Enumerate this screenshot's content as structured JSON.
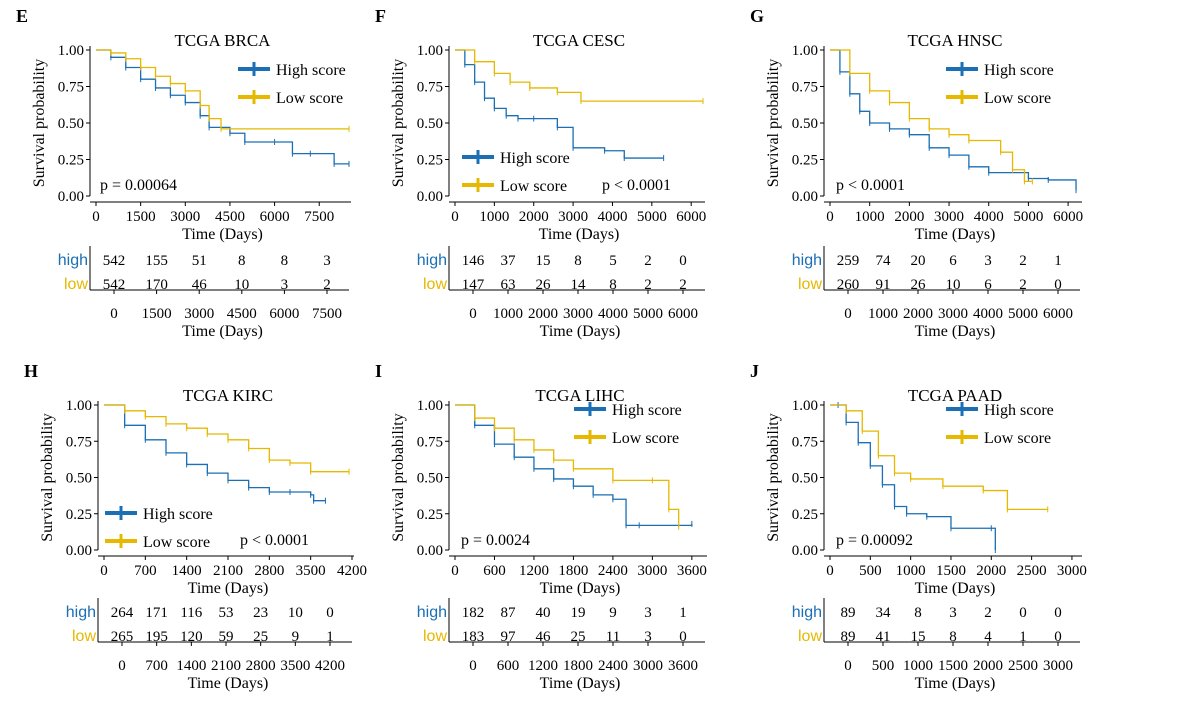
{
  "colors": {
    "high": "#1a6fb5",
    "low": "#e6b800",
    "axis": "#000000"
  },
  "legend_labels": {
    "high": "High score",
    "low": "Low score"
  },
  "y_axis_label": "Survival probability",
  "x_axis_label": "Time (Days)",
  "y_ticks": [
    "0.00",
    "0.25",
    "0.50",
    "0.75",
    "1.00"
  ],
  "panels": [
    {
      "letter": "E",
      "title": "TCGA BRCA",
      "pvalue": "p = 0.00064",
      "x_ticks": [
        0,
        1500,
        3000,
        4500,
        6000,
        7500
      ],
      "risk_times": [
        0,
        1500,
        3000,
        4500,
        6000,
        7500
      ],
      "risk_table": {
        "high": [
          "542",
          "155",
          "51",
          "8",
          "8",
          "3"
        ],
        "low": [
          "542",
          "170",
          "46",
          "10",
          "3",
          "2"
        ]
      },
      "risk_labels": {
        "high": "high",
        "low": "low"
      }
    },
    {
      "letter": "F",
      "title": "TCGA CESC",
      "pvalue": "p < 0.0001",
      "x_ticks": [
        0,
        1000,
        2000,
        3000,
        4000,
        5000,
        6000
      ],
      "risk_times": [
        0,
        1000,
        2000,
        3000,
        4000,
        5000,
        6000
      ],
      "risk_table": {
        "high": [
          "146",
          "37",
          "15",
          "8",
          "5",
          "2",
          "0"
        ],
        "low": [
          "147",
          "63",
          "26",
          "14",
          "8",
          "2",
          "2"
        ]
      },
      "risk_labels": {
        "high": "high",
        "low": "low"
      }
    },
    {
      "letter": "G",
      "title": "TCGA HNSC",
      "pvalue": "p < 0.0001",
      "x_ticks": [
        0,
        1000,
        2000,
        3000,
        4000,
        5000,
        6000
      ],
      "risk_times": [
        0,
        1000,
        2000,
        3000,
        4000,
        5000,
        6000
      ],
      "risk_table": {
        "high": [
          "259",
          "74",
          "20",
          "6",
          "3",
          "2",
          "1"
        ],
        "low": [
          "260",
          "91",
          "26",
          "10",
          "6",
          "2",
          "0"
        ]
      },
      "risk_labels": {
        "high": "high",
        "low": "low"
      }
    },
    {
      "letter": "H",
      "title": "TCGA KIRC",
      "pvalue": "p < 0.0001",
      "x_ticks": [
        0,
        700,
        1400,
        2100,
        2800,
        3500,
        4200
      ],
      "risk_times": [
        0,
        700,
        1400,
        2100,
        2800,
        3500,
        4200
      ],
      "risk_table": {
        "high": [
          "264",
          "171",
          "116",
          "53",
          "23",
          "10",
          "0"
        ],
        "low": [
          "265",
          "195",
          "120",
          "59",
          "25",
          "9",
          "1"
        ]
      },
      "risk_labels": {
        "high": "high",
        "low": "low"
      }
    },
    {
      "letter": "I",
      "title": "TCGA LIHC",
      "pvalue": "p = 0.0024",
      "x_ticks": [
        0,
        600,
        1200,
        1800,
        2400,
        3000,
        3600
      ],
      "risk_times": [
        0,
        600,
        1200,
        1800,
        2400,
        3000,
        3600
      ],
      "risk_table": {
        "high": [
          "182",
          "87",
          "40",
          "19",
          "9",
          "3",
          "1"
        ],
        "low": [
          "183",
          "97",
          "46",
          "25",
          "11",
          "3",
          "0"
        ]
      },
      "risk_labels": {
        "high": "high",
        "low": "low"
      }
    },
    {
      "letter": "J",
      "title": "TCGA PAAD",
      "pvalue": "p = 0.00092",
      "x_ticks": [
        0,
        500,
        1000,
        1500,
        2000,
        2500,
        3000
      ],
      "risk_times": [
        0,
        500,
        1000,
        1500,
        2000,
        2500,
        3000
      ],
      "risk_table": {
        "high": [
          "89",
          "34",
          "8",
          "3",
          "2",
          "0",
          "0"
        ],
        "low": [
          "89",
          "41",
          "15",
          "8",
          "4",
          "1",
          "0"
        ]
      },
      "risk_labels": {
        "high": "high",
        "low": "low"
      }
    }
  ],
  "chart_data": [
    {
      "type": "line",
      "title": "TCGA BRCA",
      "xlabel": "Time (Days)",
      "ylabel": "Survival probability",
      "xlim": [
        0,
        8500
      ],
      "ylim": [
        0,
        1
      ],
      "legend": "top-right",
      "series": [
        {
          "name": "High score",
          "x": [
            0,
            500,
            1000,
            1500,
            2000,
            2500,
            3000,
            3500,
            3800,
            4500,
            5000,
            6000,
            6600,
            7200,
            8000,
            8500
          ],
          "y": [
            1.0,
            0.95,
            0.88,
            0.8,
            0.74,
            0.69,
            0.64,
            0.55,
            0.47,
            0.43,
            0.37,
            0.37,
            0.29,
            0.29,
            0.22,
            0.22
          ]
        },
        {
          "name": "Low score",
          "x": [
            0,
            500,
            1000,
            1500,
            2000,
            2500,
            3000,
            3500,
            3800,
            4200,
            8500
          ],
          "y": [
            1.0,
            0.98,
            0.94,
            0.88,
            0.82,
            0.77,
            0.72,
            0.62,
            0.53,
            0.46,
            0.46
          ]
        }
      ]
    },
    {
      "type": "line",
      "title": "TCGA CESC",
      "xlabel": "Time (Days)",
      "ylabel": "Survival probability",
      "xlim": [
        0,
        6300
      ],
      "ylim": [
        0,
        1
      ],
      "legend": "bottom-left",
      "series": [
        {
          "name": "High score",
          "x": [
            0,
            250,
            500,
            750,
            1000,
            1300,
            1600,
            2000,
            2600,
            3000,
            3800,
            4300,
            5300
          ],
          "y": [
            1.0,
            0.9,
            0.78,
            0.67,
            0.6,
            0.55,
            0.53,
            0.53,
            0.47,
            0.33,
            0.31,
            0.26,
            0.26
          ]
        },
        {
          "name": "Low score",
          "x": [
            0,
            500,
            1000,
            1400,
            1900,
            2600,
            3200,
            6300
          ],
          "y": [
            1.0,
            0.92,
            0.84,
            0.78,
            0.74,
            0.71,
            0.65,
            0.65
          ]
        }
      ]
    },
    {
      "type": "line",
      "title": "TCGA HNSC",
      "xlabel": "Time (Days)",
      "ylabel": "Survival probability",
      "xlim": [
        0,
        6300
      ],
      "ylim": [
        0,
        1
      ],
      "legend": "top-right",
      "series": [
        {
          "name": "High score",
          "x": [
            0,
            250,
            500,
            750,
            1000,
            1500,
            2000,
            2500,
            3000,
            3500,
            4000,
            5000,
            5500,
            6200
          ],
          "y": [
            1.0,
            0.85,
            0.7,
            0.58,
            0.5,
            0.46,
            0.42,
            0.33,
            0.28,
            0.2,
            0.16,
            0.12,
            0.11,
            0.04
          ]
        },
        {
          "name": "Low score",
          "x": [
            0,
            500,
            1000,
            1500,
            2000,
            2500,
            3000,
            3500,
            4300,
            4600,
            4900,
            5100
          ],
          "y": [
            1.0,
            0.84,
            0.72,
            0.64,
            0.53,
            0.46,
            0.42,
            0.38,
            0.3,
            0.18,
            0.1,
            0.1
          ]
        }
      ]
    },
    {
      "type": "line",
      "title": "TCGA KIRC",
      "xlabel": "Time (Days)",
      "ylabel": "Survival probability",
      "xlim": [
        0,
        4200
      ],
      "ylim": [
        0,
        1
      ],
      "legend": "bottom-left",
      "series": [
        {
          "name": "High score",
          "x": [
            0,
            350,
            700,
            1050,
            1400,
            1750,
            2100,
            2450,
            2800,
            3150,
            3500,
            3550,
            3750
          ],
          "y": [
            1.0,
            0.86,
            0.76,
            0.67,
            0.59,
            0.53,
            0.48,
            0.43,
            0.4,
            0.4,
            0.38,
            0.34,
            0.34
          ]
        },
        {
          "name": "Low score",
          "x": [
            0,
            350,
            700,
            1050,
            1400,
            1750,
            2100,
            2450,
            2800,
            3150,
            3500,
            4150
          ],
          "y": [
            1.0,
            0.96,
            0.92,
            0.87,
            0.84,
            0.8,
            0.76,
            0.7,
            0.62,
            0.6,
            0.54,
            0.54
          ]
        }
      ]
    },
    {
      "type": "line",
      "title": "TCGA LIHC",
      "xlabel": "Time (Days)",
      "ylabel": "Survival probability",
      "xlim": [
        0,
        3800
      ],
      "ylim": [
        0,
        1
      ],
      "legend": "top-right",
      "series": [
        {
          "name": "High score",
          "x": [
            0,
            300,
            600,
            900,
            1200,
            1500,
            1800,
            2100,
            2400,
            2600,
            2800,
            3600
          ],
          "y": [
            1.0,
            0.86,
            0.73,
            0.64,
            0.56,
            0.49,
            0.44,
            0.38,
            0.35,
            0.17,
            0.17,
            0.18
          ]
        },
        {
          "name": "Low score",
          "x": [
            0,
            300,
            600,
            900,
            1200,
            1500,
            1800,
            2400,
            3000,
            3250,
            3400
          ],
          "y": [
            1.0,
            0.91,
            0.84,
            0.76,
            0.69,
            0.62,
            0.56,
            0.48,
            0.48,
            0.28,
            0.16
          ]
        }
      ]
    },
    {
      "type": "line",
      "title": "TCGA PAAD",
      "xlabel": "Time (Days)",
      "ylabel": "Survival probability",
      "xlim": [
        0,
        3100
      ],
      "ylim": [
        0,
        1
      ],
      "legend": "top-right",
      "series": [
        {
          "name": "High score",
          "x": [
            0,
            100,
            200,
            350,
            500,
            650,
            800,
            950,
            1200,
            1500,
            2000,
            2050
          ],
          "y": [
            1.0,
            1.0,
            0.88,
            0.74,
            0.58,
            0.45,
            0.3,
            0.25,
            0.23,
            0.15,
            0.15,
            0.0
          ]
        },
        {
          "name": "Low score",
          "x": [
            0,
            200,
            400,
            600,
            800,
            1000,
            1400,
            1900,
            2200,
            2700
          ],
          "y": [
            1.0,
            0.96,
            0.82,
            0.65,
            0.53,
            0.49,
            0.44,
            0.41,
            0.28,
            0.28
          ]
        }
      ]
    }
  ]
}
